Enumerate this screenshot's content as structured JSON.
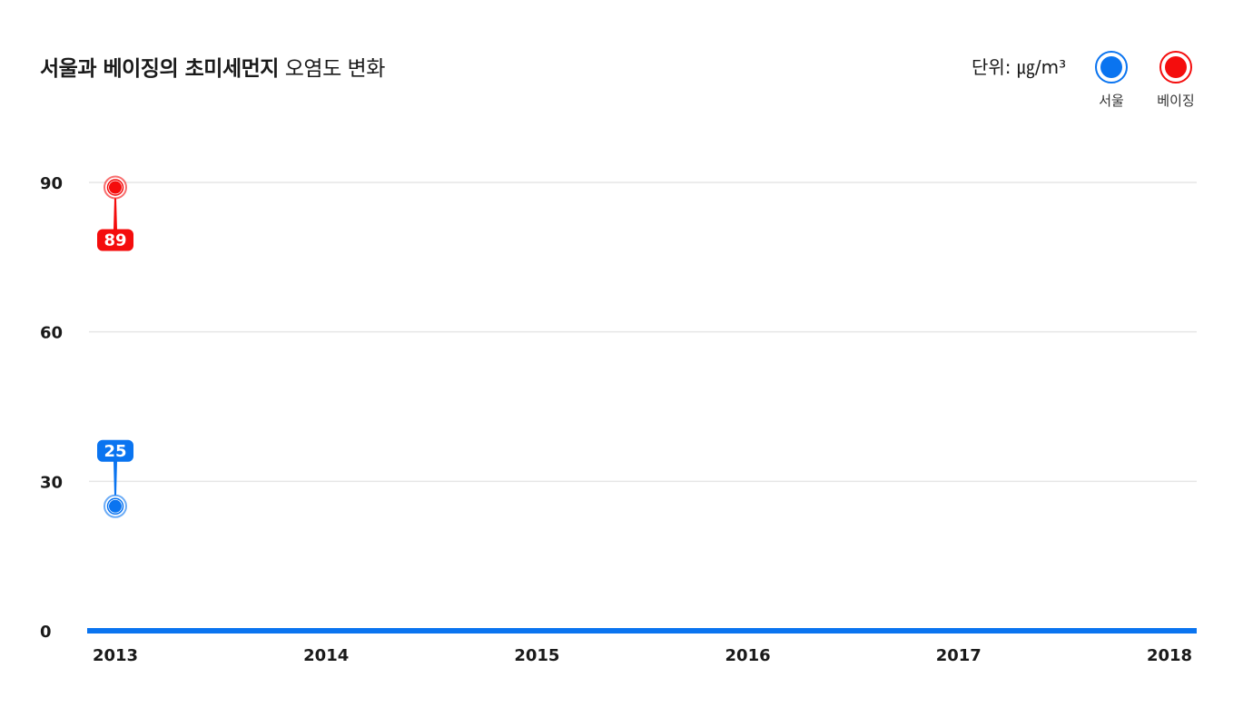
{
  "title": {
    "bold": "서울과 베이징의 초미세먼지",
    "light": " 오염도 변화"
  },
  "unit_label": "단위: ㎍/m³",
  "colors": {
    "seoul": "#0a74f0",
    "beijing": "#f40d0d",
    "grid": "#e6e6e6",
    "axis": "#0a74f0"
  },
  "legend": [
    {
      "name": "서울",
      "color": "#0a74f0"
    },
    {
      "name": "베이징",
      "color": "#f40d0d"
    }
  ],
  "chart_data": {
    "type": "line",
    "categories": [
      "2013",
      "2014",
      "2015",
      "2016",
      "2017",
      "2018"
    ],
    "series": [
      {
        "name": "서울",
        "values": [
          25,
          null,
          null,
          null,
          null,
          null
        ]
      },
      {
        "name": "베이징",
        "values": [
          89,
          null,
          null,
          null,
          null,
          null
        ]
      }
    ],
    "yticks": [
      0,
      30,
      60,
      90
    ],
    "ylim": [
      0,
      90
    ],
    "grid": true,
    "legend_position": "top-right",
    "title": "서울과 베이징의 초미세먼지 오염도 변화"
  }
}
